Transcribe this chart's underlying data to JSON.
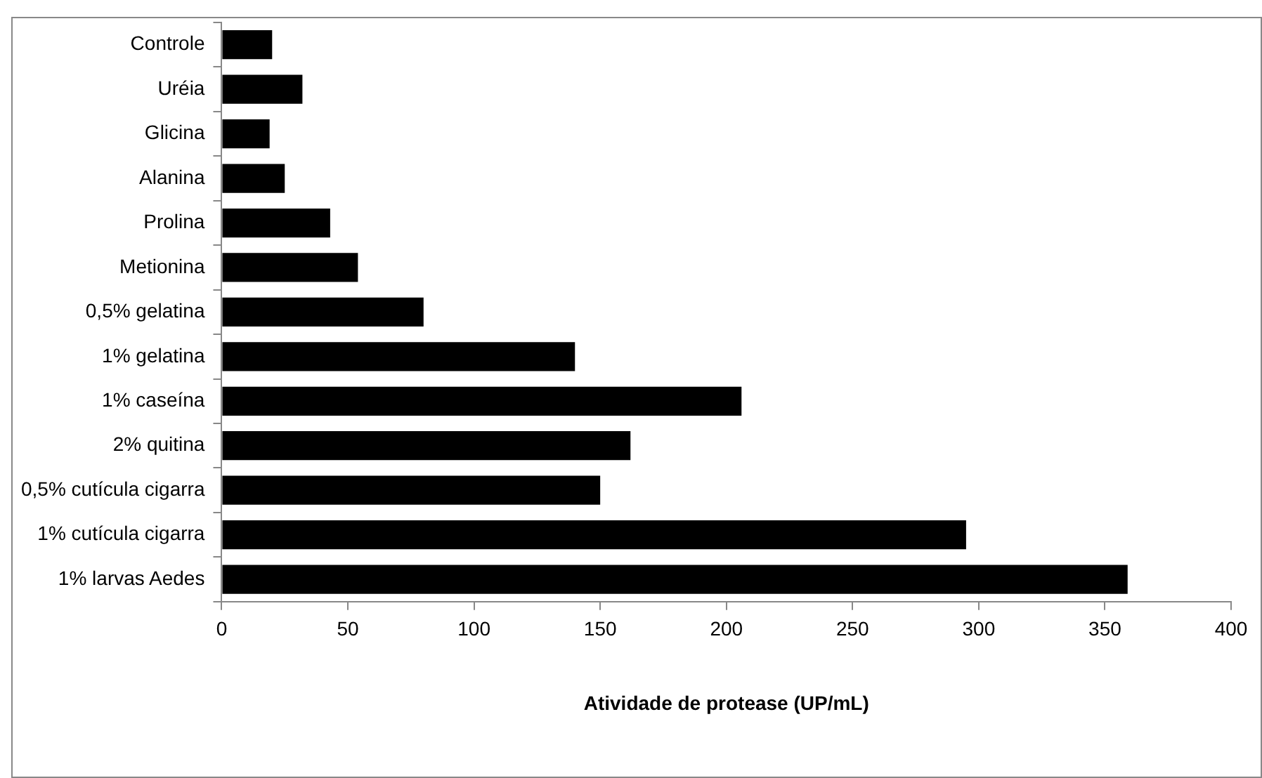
{
  "chart_data": {
    "type": "bar",
    "orientation": "horizontal",
    "xlabel": "Atividade de protease (UP/mL)",
    "categories": [
      "Controle",
      "Uréia",
      "Glicina",
      "Alanina",
      "Prolina",
      "Metionina",
      "0,5% gelatina",
      "1% gelatina",
      "1% caseína",
      "2% quitina",
      "0,5% cutícula cigarra",
      "1% cutícula cigarra",
      "1% larvas Aedes"
    ],
    "values": [
      20,
      32,
      19,
      25,
      43,
      54,
      80,
      140,
      206,
      162,
      150,
      295,
      359
    ],
    "color": "#000000",
    "xlim": [
      0,
      400
    ],
    "xticks": [
      0,
      50,
      100,
      150,
      200,
      250,
      300,
      350,
      400
    ],
    "grid": false,
    "legend": false
  }
}
